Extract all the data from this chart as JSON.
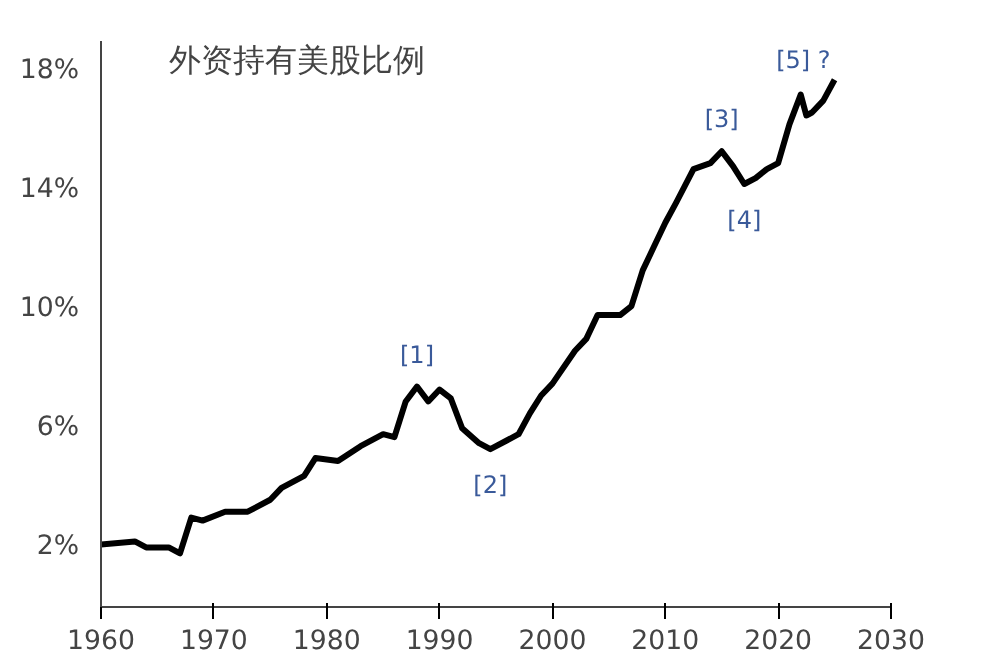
{
  "chart_data": {
    "type": "line",
    "title": "外资持有美股比例",
    "x": [
      1960,
      1963,
      1964,
      1966,
      1967,
      1968,
      1969,
      1971,
      1973,
      1975,
      1976,
      1978,
      1979,
      1981,
      1983,
      1985,
      1986,
      1987,
      1988,
      1989,
      1990,
      1991,
      1992,
      1993.5,
      1994.5,
      1997,
      1998,
      1999,
      2000,
      2002,
      2003,
      2004,
      2006,
      2007,
      2008,
      2009,
      2010,
      2011,
      2012.5,
      2014,
      2015,
      2016,
      2017,
      2018,
      2019,
      2020,
      2021,
      2022,
      2022.5,
      2023,
      2024,
      2025
    ],
    "series": [
      {
        "color": "#000000",
        "values": [
          2.1,
          2.2,
          2.0,
          2.0,
          1.8,
          3.0,
          2.9,
          3.2,
          3.2,
          3.6,
          4.0,
          4.4,
          5.0,
          4.9,
          5.4,
          5.8,
          5.7,
          6.9,
          7.4,
          6.9,
          7.3,
          7.0,
          6.0,
          5.5,
          5.3,
          5.8,
          6.5,
          7.1,
          7.5,
          8.6,
          9.0,
          9.8,
          9.8,
          10.1,
          11.3,
          12.1,
          12.9,
          13.6,
          14.7,
          14.9,
          15.3,
          14.8,
          14.2,
          14.4,
          14.7,
          14.9,
          16.2,
          17.2,
          16.5,
          16.6,
          17.0,
          17.7
        ]
      }
    ],
    "xlim": [
      1960,
      2030
    ],
    "xticks": [
      1960,
      1970,
      1980,
      1990,
      2000,
      2010,
      2020,
      2030
    ],
    "ylim": [
      0,
      19
    ],
    "yticks": [
      {
        "value": 2,
        "label": "2%"
      },
      {
        "value": 6,
        "label": "6%"
      },
      {
        "value": 10,
        "label": "10%"
      },
      {
        "value": 14,
        "label": "14%"
      },
      {
        "value": 18,
        "label": "18%"
      }
    ],
    "grid": false,
    "annotations": [
      {
        "text": "[1]",
        "x": 1988,
        "y": 7.4
      },
      {
        "text": "[2]",
        "x": 1994.5,
        "y": 5.3
      },
      {
        "text": "[3]",
        "x": 2015,
        "y": 15.3
      },
      {
        "text": "[4]",
        "x": 2017,
        "y": 14.2
      },
      {
        "text": "[5] ?",
        "x": 2025,
        "y": 17.7
      }
    ]
  }
}
